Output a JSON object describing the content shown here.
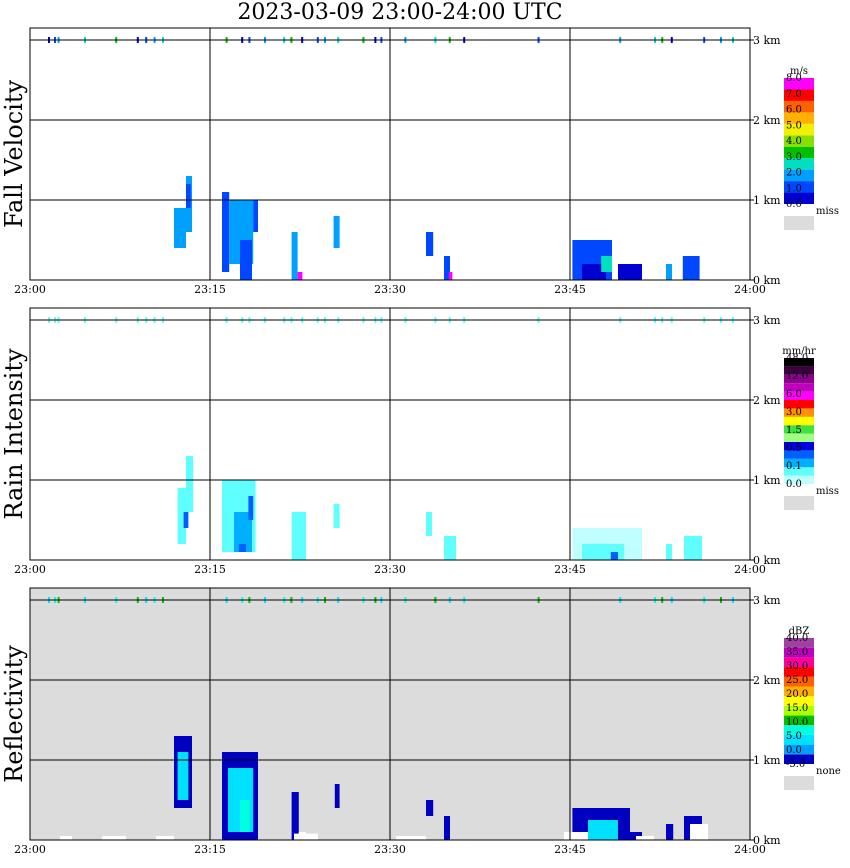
{
  "title": "2023-03-09   23:00-24:00 UTC",
  "chart_data": [
    {
      "type": "heatmap",
      "panel": "fall-velocity",
      "ylabel": "Fall Velocity",
      "x_ticks": [
        "23:00",
        "23:15",
        "23:30",
        "23:45",
        "24:00"
      ],
      "y_ticks": [
        "0 km",
        "1 km",
        "2 km",
        "3 km"
      ],
      "ylim_km": [
        0,
        3.2
      ],
      "background": "#ffffff",
      "colorbar": {
        "unit": "m/s",
        "colors": [
          "#0000d0",
          "#0048ff",
          "#00a0ff",
          "#00e0c0",
          "#00c000",
          "#88e000",
          "#f0f000",
          "#ffb000",
          "#ff6000",
          "#ff0000",
          "#ff00ff"
        ],
        "labels": [
          "0.0",
          "1.0",
          "2.0",
          "3.0",
          "4.0",
          "5.0",
          "6.0",
          "7.0",
          "8.0"
        ],
        "missing_label": "miss",
        "missing_color": "#dcdcdc"
      },
      "cells": [
        {
          "t": [
            13.0,
            13.5
          ],
          "h": [
            0.6,
            1.3
          ],
          "c": 2
        },
        {
          "t": [
            12.0,
            13.0
          ],
          "h": [
            0.4,
            0.9
          ],
          "c": 2
        },
        {
          "t": [
            13.0,
            13.4
          ],
          "h": [
            0.9,
            1.2
          ],
          "c": 1
        },
        {
          "t": [
            16.0,
            16.6
          ],
          "h": [
            0.1,
            1.1
          ],
          "c": 1
        },
        {
          "t": [
            16.6,
            18.6
          ],
          "h": [
            0.2,
            1.0
          ],
          "c": 2
        },
        {
          "t": [
            17.5,
            18.5
          ],
          "h": [
            0.0,
            0.5
          ],
          "c": 1
        },
        {
          "t": [
            18.6,
            19.0
          ],
          "h": [
            0.6,
            1.0
          ],
          "c": 1
        },
        {
          "t": [
            21.8,
            22.3
          ],
          "h": [
            0.0,
            0.6
          ],
          "c": 2
        },
        {
          "t": [
            22.3,
            22.7
          ],
          "h": [
            0.0,
            0.1
          ],
          "c": 10
        },
        {
          "t": [
            25.3,
            25.8
          ],
          "h": [
            0.4,
            0.8
          ],
          "c": 2
        },
        {
          "t": [
            33.0,
            33.6
          ],
          "h": [
            0.3,
            0.6
          ],
          "c": 1
        },
        {
          "t": [
            34.5,
            35.0
          ],
          "h": [
            0.0,
            0.3
          ],
          "c": 1
        },
        {
          "t": [
            34.9,
            35.2
          ],
          "h": [
            0.0,
            0.1
          ],
          "c": 10
        },
        {
          "t": [
            45.2,
            48.5
          ],
          "h": [
            0.0,
            0.5
          ],
          "c": 1
        },
        {
          "t": [
            46.0,
            48.0
          ],
          "h": [
            0.0,
            0.2
          ],
          "c": 0
        },
        {
          "t": [
            47.6,
            48.5
          ],
          "h": [
            0.1,
            0.3
          ],
          "c": 3
        },
        {
          "t": [
            49.0,
            51.0
          ],
          "h": [
            0.0,
            0.2
          ],
          "c": 0
        },
        {
          "t": [
            53.0,
            53.5
          ],
          "h": [
            0.0,
            0.2
          ],
          "c": 2
        },
        {
          "t": [
            54.4,
            55.8
          ],
          "h": [
            0.0,
            0.3
          ],
          "c": 1
        }
      ],
      "top_marks": [
        1.5,
        2.0,
        2.3,
        4.5,
        7.1,
        8.9,
        9.6,
        10.3,
        11.0,
        16.3,
        17.6,
        18.2,
        19.5,
        21.1,
        21.7,
        22.6,
        23.9,
        24.5,
        25.6,
        27.7,
        28.7,
        29.2,
        31.2,
        33.7,
        34.9,
        36.1,
        42.3,
        49.1,
        52.0,
        52.6,
        53.4,
        56.1,
        57.5,
        58.5
      ],
      "top_colors": [
        0,
        1,
        2,
        3,
        4
      ]
    },
    {
      "type": "heatmap",
      "panel": "rain-intensity",
      "ylabel": "Rain Intensity",
      "x_ticks": [
        "23:00",
        "23:15",
        "23:30",
        "23:45",
        "24:00"
      ],
      "y_ticks": [
        "0 km",
        "1 km",
        "2 km",
        "3 km"
      ],
      "ylim_km": [
        0,
        3.2
      ],
      "background": "#ffffff",
      "colorbar": {
        "unit": "mm/hr",
        "colors": [
          "#c0ffff",
          "#60ffff",
          "#00b0ff",
          "#0060ff",
          "#0000e0",
          "#a0ff80",
          "#40e040",
          "#ffff00",
          "#ff9000",
          "#ff0000",
          "#ff00ff",
          "#c000c0",
          "#900090",
          "#400040",
          "#000000"
        ],
        "labels": [
          "0.0",
          "0.1",
          "0.5",
          "1.5",
          "3.0",
          "6.0",
          "12.0",
          "48.0"
        ],
        "missing_label": "miss",
        "missing_color": "#dcdcdc"
      },
      "cells": [
        {
          "t": [
            13.0,
            13.6
          ],
          "h": [
            0.6,
            1.3
          ],
          "c": 1
        },
        {
          "t": [
            12.3,
            13.0
          ],
          "h": [
            0.2,
            0.9
          ],
          "c": 1
        },
        {
          "t": [
            12.8,
            13.2
          ],
          "h": [
            0.4,
            0.6
          ],
          "c": 3
        },
        {
          "t": [
            16.0,
            18.8
          ],
          "h": [
            0.1,
            1.0
          ],
          "c": 1
        },
        {
          "t": [
            17.0,
            18.5
          ],
          "h": [
            0.1,
            0.6
          ],
          "c": 2
        },
        {
          "t": [
            17.4,
            18.0
          ],
          "h": [
            0.1,
            0.2
          ],
          "c": 3
        },
        {
          "t": [
            18.2,
            18.6
          ],
          "h": [
            0.5,
            0.8
          ],
          "c": 3
        },
        {
          "t": [
            21.8,
            23.0
          ],
          "h": [
            0.0,
            0.6
          ],
          "c": 1
        },
        {
          "t": [
            25.3,
            25.8
          ],
          "h": [
            0.4,
            0.7
          ],
          "c": 1
        },
        {
          "t": [
            33.0,
            33.5
          ],
          "h": [
            0.3,
            0.6
          ],
          "c": 1
        },
        {
          "t": [
            34.5,
            35.5
          ],
          "h": [
            0.0,
            0.3
          ],
          "c": 1
        },
        {
          "t": [
            45.2,
            51.0
          ],
          "h": [
            0.0,
            0.4
          ],
          "c": 0
        },
        {
          "t": [
            46.0,
            49.5
          ],
          "h": [
            0.0,
            0.2
          ],
          "c": 1
        },
        {
          "t": [
            48.4,
            49.0
          ],
          "h": [
            0.0,
            0.1
          ],
          "c": 3
        },
        {
          "t": [
            53.0,
            53.5
          ],
          "h": [
            0.0,
            0.2
          ],
          "c": 1
        },
        {
          "t": [
            54.5,
            56.0
          ],
          "h": [
            0.0,
            0.3
          ],
          "c": 1
        }
      ],
      "top_marks": [
        1.5,
        2.0,
        2.3,
        4.5,
        7.1,
        8.9,
        9.6,
        10.3,
        11.0,
        16.3,
        17.6,
        18.2,
        19.5,
        21.1,
        21.7,
        22.6,
        23.9,
        24.5,
        25.6,
        27.7,
        28.7,
        29.2,
        31.2,
        33.7,
        34.9,
        36.1,
        42.3,
        49.1,
        52.0,
        52.6,
        53.4,
        56.1,
        57.5,
        58.5
      ],
      "top_colors": [
        1,
        1,
        1
      ]
    },
    {
      "type": "heatmap",
      "panel": "reflectivity",
      "ylabel": "Reflectivity",
      "x_ticks": [
        "23:00",
        "23:15",
        "23:30",
        "23:45",
        "24:00"
      ],
      "y_ticks": [
        "0 km",
        "1 km",
        "2 km",
        "3 km"
      ],
      "ylim_km": [
        0,
        3.2
      ],
      "background": "#dcdcdc",
      "colorbar": {
        "unit": "dBZ",
        "colors": [
          "#0000c0",
          "#00a0ff",
          "#00e0ff",
          "#00ffe0",
          "#00c000",
          "#b0ff00",
          "#ffff00",
          "#ffb000",
          "#ff6000",
          "#ff0000",
          "#ff00a0",
          "#c000c0",
          "#a040a0"
        ],
        "labels": [
          "-5.0",
          "0.0",
          "5.0",
          "10.0",
          "15.0",
          "20.0",
          "25.0",
          "30.0",
          "35.0",
          "40.0"
        ],
        "missing_label": "none",
        "missing_color": "#dcdcdc"
      },
      "cells": [
        {
          "t": [
            12.0,
            13.5
          ],
          "h": [
            0.4,
            1.3
          ],
          "c": 0
        },
        {
          "t": [
            12.3,
            13.2
          ],
          "h": [
            0.5,
            1.1
          ],
          "c": 2
        },
        {
          "t": [
            16.0,
            19.0
          ],
          "h": [
            0.0,
            1.1
          ],
          "c": 0
        },
        {
          "t": [
            16.5,
            18.6
          ],
          "h": [
            0.1,
            0.9
          ],
          "c": 2
        },
        {
          "t": [
            17.5,
            18.3
          ],
          "h": [
            0.1,
            0.5
          ],
          "c": 3
        },
        {
          "t": [
            21.8,
            22.4
          ],
          "h": [
            0.0,
            0.6
          ],
          "c": 0
        },
        {
          "t": [
            22.4,
            23.0
          ],
          "h": [
            0.0,
            0.1
          ],
          "c": 15
        },
        {
          "t": [
            25.4,
            25.8
          ],
          "h": [
            0.4,
            0.7
          ],
          "c": 0
        },
        {
          "t": [
            33.0,
            33.6
          ],
          "h": [
            0.3,
            0.5
          ],
          "c": 0
        },
        {
          "t": [
            34.5,
            35.0
          ],
          "h": [
            0.0,
            0.3
          ],
          "c": 0
        },
        {
          "t": [
            45.2,
            50.0
          ],
          "h": [
            0.0,
            0.4
          ],
          "c": 0
        },
        {
          "t": [
            46.5,
            49.0
          ],
          "h": [
            0.0,
            0.25
          ],
          "c": 2
        },
        {
          "t": [
            50.0,
            51.0
          ],
          "h": [
            0.0,
            0.1
          ],
          "c": 0
        },
        {
          "t": [
            53.0,
            53.6
          ],
          "h": [
            0.0,
            0.2
          ],
          "c": 0
        },
        {
          "t": [
            54.5,
            56.0
          ],
          "h": [
            0.0,
            0.3
          ],
          "c": 0
        }
      ],
      "white_cells": [
        {
          "t": [
            6.0,
            8.0
          ],
          "h": [
            0.0,
            0.05
          ]
        },
        {
          "t": [
            2.5,
            3.5
          ],
          "h": [
            0.0,
            0.05
          ]
        },
        {
          "t": [
            10.5,
            12.0
          ],
          "h": [
            0.0,
            0.05
          ]
        },
        {
          "t": [
            22.0,
            24.0
          ],
          "h": [
            0.0,
            0.08
          ]
        },
        {
          "t": [
            30.5,
            33.0
          ],
          "h": [
            0.0,
            0.05
          ]
        },
        {
          "t": [
            44.5,
            46.5
          ],
          "h": [
            0.0,
            0.1
          ]
        },
        {
          "t": [
            50.5,
            52.0
          ],
          "h": [
            0.0,
            0.05
          ]
        },
        {
          "t": [
            55.0,
            56.5
          ],
          "h": [
            0.0,
            0.2
          ]
        }
      ],
      "top_marks": [
        1.5,
        2.0,
        2.3,
        4.5,
        7.1,
        8.9,
        9.6,
        10.3,
        11.0,
        16.3,
        17.6,
        18.2,
        19.5,
        21.1,
        21.7,
        22.6,
        23.9,
        24.5,
        25.6,
        27.7,
        28.7,
        29.2,
        31.2,
        33.7,
        34.9,
        36.1,
        42.3,
        49.1,
        52.0,
        52.6,
        53.4,
        56.1,
        57.5,
        58.5
      ],
      "top_colors": [
        2,
        3,
        4
      ]
    }
  ]
}
